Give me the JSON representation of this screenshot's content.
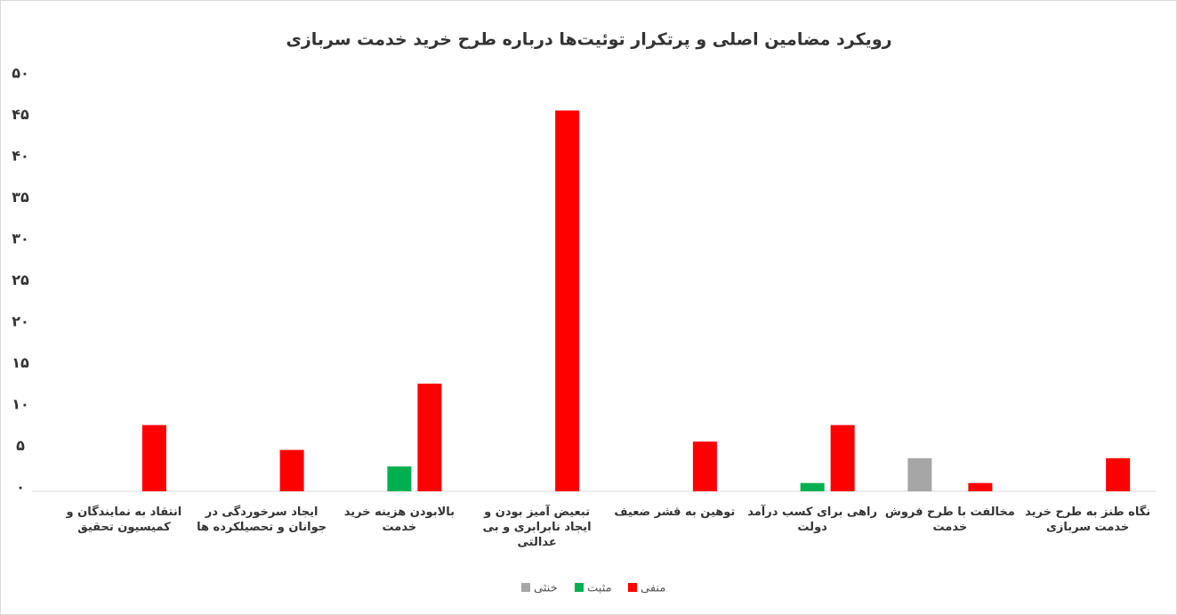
{
  "chart_data": {
    "type": "bar",
    "title": "رویکرد مضامین اصلی و پرتکرار توئیت‌ها درباره طرح خرید خدمت سربازی",
    "categories": [
      "انتقاد به نمایندگان و کمیسیون تحقیق",
      "ایجاد سرخوردگی در جوانان و تحصیلکرده ها",
      "بالابودن هزینه خرید خدمت",
      "تبعیض آمیز بودن و ایجاد نابرابری و بی عدالتی",
      "توهین به قشر ضعیف",
      "راهی برای کسب درآمد دولت",
      "مخالفت با طرح فروش خدمت",
      "نگاه طنز به طرح خرید خدمت سربازی"
    ],
    "series": [
      {
        "name": "خنثی",
        "color": "#a6a6a6",
        "values": [
          0,
          0,
          0,
          0,
          0,
          0,
          4,
          0
        ]
      },
      {
        "name": "مثبت",
        "color": "#00b050",
        "values": [
          0,
          0,
          3,
          0,
          0,
          1,
          0,
          0
        ]
      },
      {
        "name": "منفی",
        "color": "#ff0000",
        "values": [
          8,
          5,
          13,
          46,
          6,
          8,
          1,
          4
        ]
      }
    ],
    "ylim": [
      0,
      50
    ],
    "yticks": [
      {
        "value": 0,
        "label": "۰"
      },
      {
        "value": 5,
        "label": "۵"
      },
      {
        "value": 10,
        "label": "۱۰"
      },
      {
        "value": 15,
        "label": "۱۵"
      },
      {
        "value": 20,
        "label": "۲۰"
      },
      {
        "value": 25,
        "label": "۲۵"
      },
      {
        "value": 30,
        "label": "۳۰"
      },
      {
        "value": 35,
        "label": "۳۵"
      },
      {
        "value": 40,
        "label": "۴۰"
      },
      {
        "value": 45,
        "label": "۴۵"
      },
      {
        "value": 50,
        "label": "۵۰"
      }
    ],
    "legend": "bottom"
  }
}
